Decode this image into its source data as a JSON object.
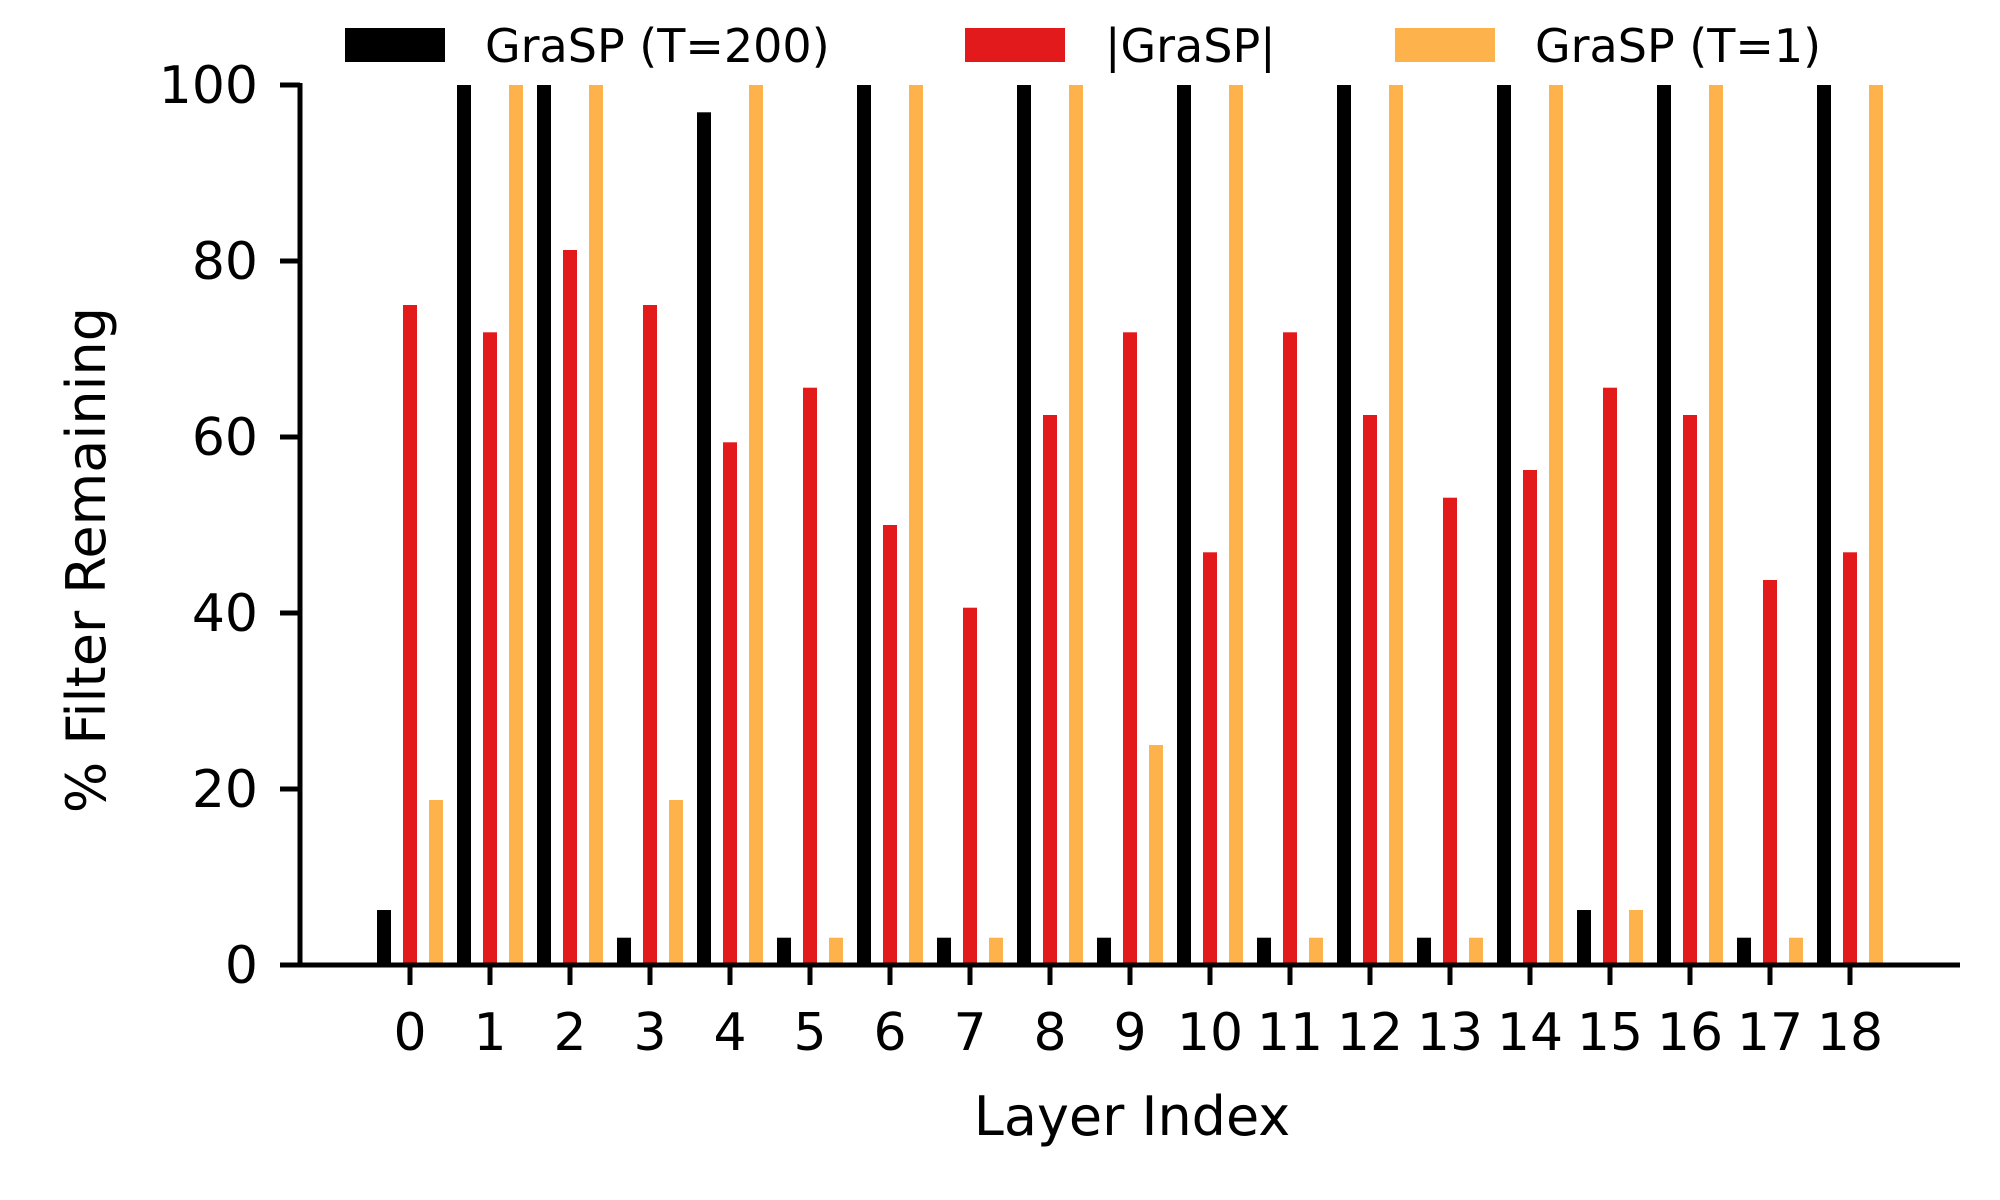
{
  "chart_data": {
    "type": "bar",
    "title": "",
    "xlabel": "Layer Index",
    "ylabel": "% Filter Remaining",
    "ylim": [
      0,
      100
    ],
    "yticks": [
      0,
      20,
      40,
      60,
      80,
      100
    ],
    "grid": false,
    "legend_position": "top",
    "categories": [
      "0",
      "1",
      "2",
      "3",
      "4",
      "5",
      "6",
      "7",
      "8",
      "9",
      "10",
      "11",
      "12",
      "13",
      "14",
      "15",
      "16",
      "17",
      "18"
    ],
    "series": [
      {
        "name": "GraSP (T=200)",
        "color": "#000000",
        "values": [
          6.25,
          100,
          100,
          3.1,
          96.9,
          3.1,
          100,
          3.1,
          100,
          3.1,
          100,
          3.1,
          100,
          3.1,
          100,
          6.25,
          100,
          3.1,
          100
        ]
      },
      {
        "name": "|GraSP|",
        "color": "#e31a1c",
        "values": [
          75,
          71.9,
          81.25,
          75,
          59.4,
          65.6,
          50,
          40.6,
          62.5,
          71.9,
          46.9,
          71.9,
          62.5,
          53.1,
          56.25,
          65.6,
          62.5,
          43.75,
          46.9
        ]
      },
      {
        "name": "GraSP (T=1)",
        "color": "#feb24c",
        "values": [
          18.75,
          100,
          100,
          18.75,
          100,
          3.1,
          100,
          3.1,
          100,
          25,
          100,
          3.1,
          100,
          3.1,
          100,
          6.25,
          100,
          3.1,
          100
        ]
      }
    ]
  }
}
